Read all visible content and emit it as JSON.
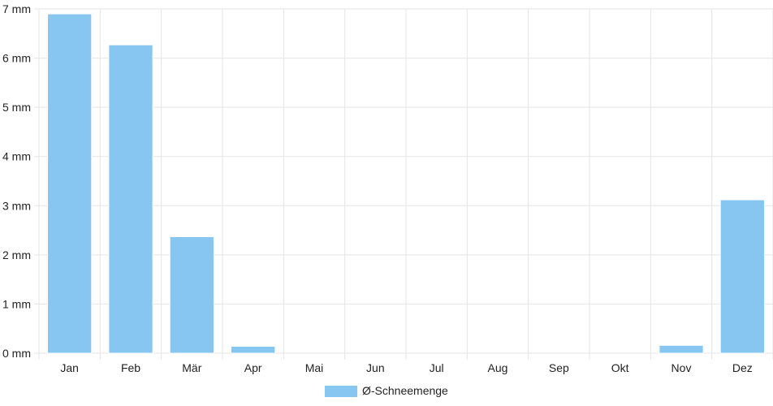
{
  "chart_data": {
    "type": "bar",
    "categories": [
      "Jan",
      "Feb",
      "Mär",
      "Apr",
      "Mai",
      "Jun",
      "Jul",
      "Aug",
      "Sep",
      "Okt",
      "Nov",
      "Dez"
    ],
    "series": [
      {
        "name": "Ø-Schneemenge",
        "values": [
          6.9,
          6.27,
          2.37,
          0.14,
          0,
          0,
          0,
          0,
          0,
          0,
          0.16,
          3.12
        ],
        "color": "#88c6f2",
        "border_color": "#ffffff"
      }
    ],
    "ylim": [
      0,
      7
    ],
    "y_ticks": [
      "0 mm",
      "1 mm",
      "2 mm",
      "3 mm",
      "4 mm",
      "5 mm",
      "6 mm",
      "7 mm"
    ],
    "y_tick_values": [
      0,
      1,
      2,
      3,
      4,
      5,
      6,
      7
    ],
    "grid": true,
    "grid_color": "#e5e5e5",
    "legend": {
      "position": "bottom",
      "label": "Ø-Schneemenge"
    }
  }
}
